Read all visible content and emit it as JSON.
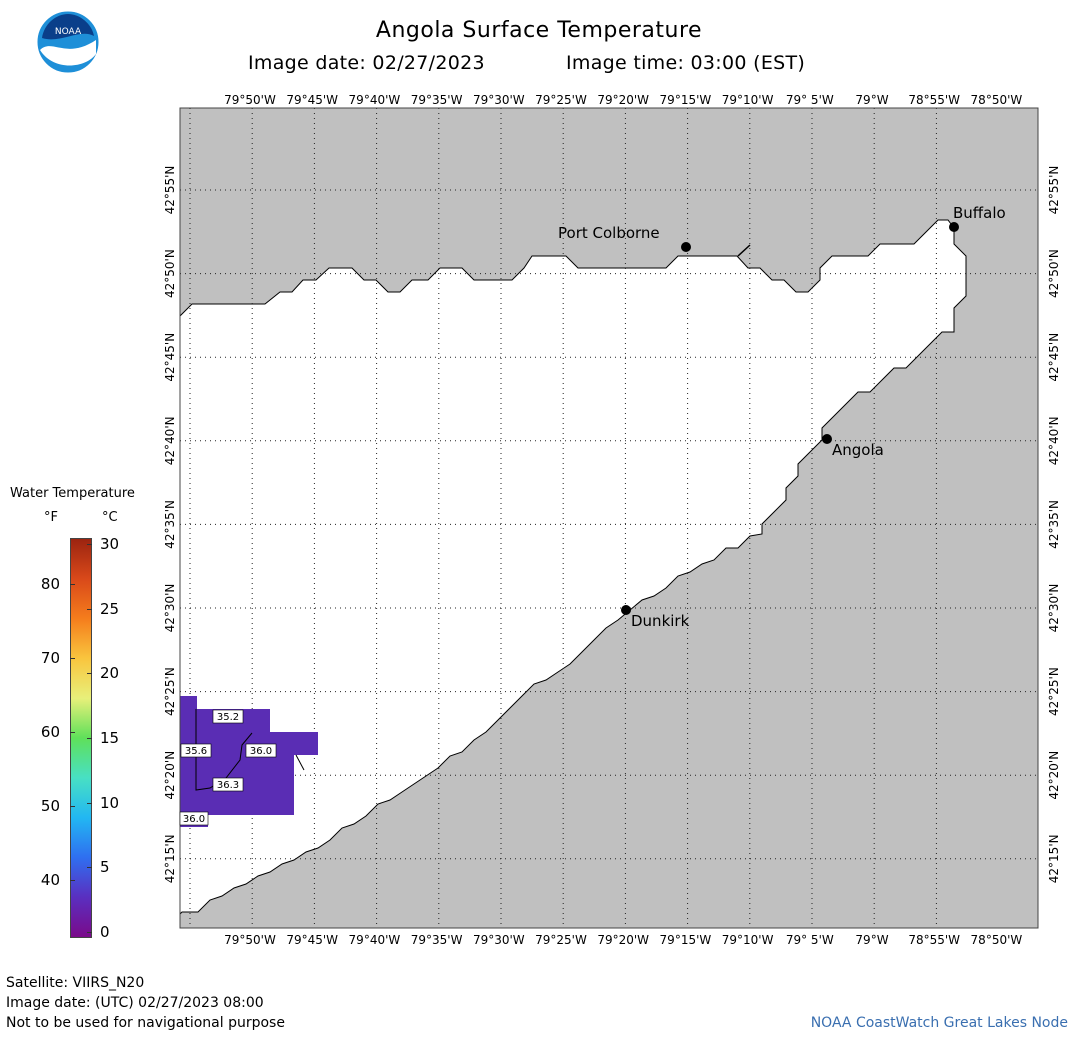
{
  "header": {
    "title": "Angola Surface Temperature",
    "image_date": "Image date: 02/27/2023",
    "image_time": "Image time: 03:00 (EST)"
  },
  "logo": {
    "text": "NOAA"
  },
  "legend": {
    "title": "Water Temperature",
    "unit_f": "°F",
    "unit_c": "°C",
    "f_ticks": [
      "80",
      "70",
      "60",
      "50",
      "40"
    ],
    "c_ticks": [
      "30",
      "25",
      "20",
      "15",
      "10",
      "5",
      "0"
    ],
    "colors": [
      "#7a0a8a",
      "#5a2fc0",
      "#2f6ff0",
      "#22b7f2",
      "#48e0c4",
      "#5fe05a",
      "#e8f07a",
      "#f9c53e",
      "#f57d1c",
      "#d9491a",
      "#9c2410"
    ]
  },
  "map": {
    "lon_labels": [
      "79°50'W",
      "79°45'W",
      "79°40'W",
      "79°35'W",
      "79°30'W",
      "79°25'W",
      "79°20'W",
      "79°15'W",
      "79°10'W",
      "79° 5'W",
      "79°W",
      "78°55'W",
      "78°50'W"
    ],
    "lat_labels": [
      "42°55'N",
      "42°50'N",
      "42°45'N",
      "42°40'N",
      "42°35'N",
      "42°30'N",
      "42°25'N",
      "42°20'N",
      "42°15'N"
    ],
    "land_color": "#c0c0c0",
    "water_color": "#ffffff",
    "temp_color": "#5a2db4",
    "cities": [
      {
        "name": "Port Colborne"
      },
      {
        "name": "Buffalo"
      },
      {
        "name": "Angola"
      },
      {
        "name": "Dunkirk"
      }
    ],
    "temp_labels": [
      "35.2",
      "35.6",
      "36.0",
      "36.3",
      "36.0"
    ]
  },
  "footer": {
    "satellite": "Satellite: VIIRS_N20",
    "utc_date": "Image date: (UTC) 02/27/2023  08:00",
    "disclaimer": "Not to be used for navigational purpose",
    "credit": "NOAA CoastWatch Great Lakes Node"
  }
}
